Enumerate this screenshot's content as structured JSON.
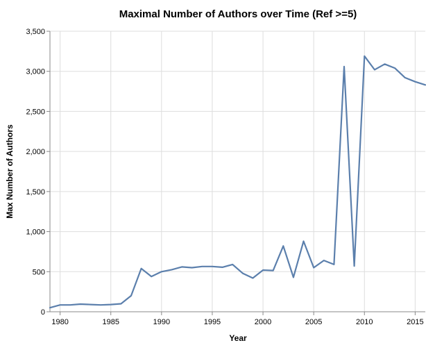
{
  "chart_data": {
    "type": "line",
    "title": "Maximal Number of Authors over Time (Ref >=5)",
    "xlabel": "Year",
    "ylabel": "Max Number of Authors",
    "xlim": [
      1979,
      2016
    ],
    "ylim": [
      0,
      3500
    ],
    "x_ticks": [
      1980,
      1985,
      1990,
      1995,
      2000,
      2005,
      2010,
      2015
    ],
    "x_tick_labels": [
      "1980",
      "1985",
      "1990",
      "1995",
      "2000",
      "2005",
      "2010",
      "2015"
    ],
    "y_ticks": [
      0,
      500,
      1000,
      1500,
      2000,
      2500,
      3000,
      3500
    ],
    "y_tick_labels": [
      "0",
      "500",
      "1,000",
      "1,500",
      "2,000",
      "2,500",
      "3,000",
      "3,500"
    ],
    "grid": true,
    "legend": "none",
    "color": "#5b7fac",
    "series": [
      {
        "x": [
          1979,
          1980,
          1981,
          1982,
          1983,
          1984,
          1985,
          1986,
          1987,
          1988,
          1989,
          1990,
          1991,
          1992,
          1993,
          1994,
          1995,
          1996,
          1997,
          1998,
          1999,
          2000,
          2001,
          2002,
          2003,
          2004,
          2005,
          2006,
          2007,
          2008,
          2009,
          2010,
          2011,
          2012,
          2013,
          2014,
          2015,
          2016
        ],
        "values": [
          50,
          85,
          85,
          95,
          90,
          85,
          90,
          100,
          200,
          540,
          440,
          500,
          525,
          560,
          550,
          565,
          565,
          555,
          590,
          480,
          420,
          520,
          515,
          820,
          430,
          880,
          550,
          640,
          590,
          3060,
          570,
          3190,
          3020,
          3090,
          3040,
          2920,
          2870,
          2830
        ]
      }
    ]
  }
}
